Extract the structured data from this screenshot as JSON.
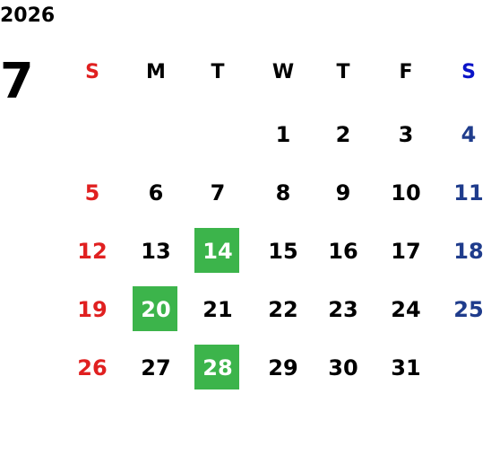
{
  "year": "2026",
  "month": "7",
  "weekdays": [
    "S",
    "M",
    "T",
    "W",
    "T",
    "F",
    "S"
  ],
  "weekday_colors": [
    "#e02020",
    "#000000",
    "#000000",
    "#000000",
    "#000000",
    "#000000",
    "#0a14c8"
  ],
  "day_colors": [
    "#e02020",
    "#000000",
    "#000000",
    "#000000",
    "#000000",
    "#000000",
    "#1f3c8c"
  ],
  "weeks": [
    [
      null,
      null,
      null,
      "1",
      "2",
      "3",
      "4"
    ],
    [
      "5",
      "6",
      "7",
      "8",
      "9",
      "10",
      "11"
    ],
    [
      "12",
      "13",
      "14",
      "15",
      "16",
      "17",
      "18"
    ],
    [
      "19",
      "20",
      "21",
      "22",
      "23",
      "24",
      "25"
    ],
    [
      "26",
      "27",
      "28",
      "29",
      "30",
      "31",
      null
    ]
  ],
  "highlighted": [
    "14",
    "20",
    "28"
  ],
  "highlight_color": "#3cb44b"
}
